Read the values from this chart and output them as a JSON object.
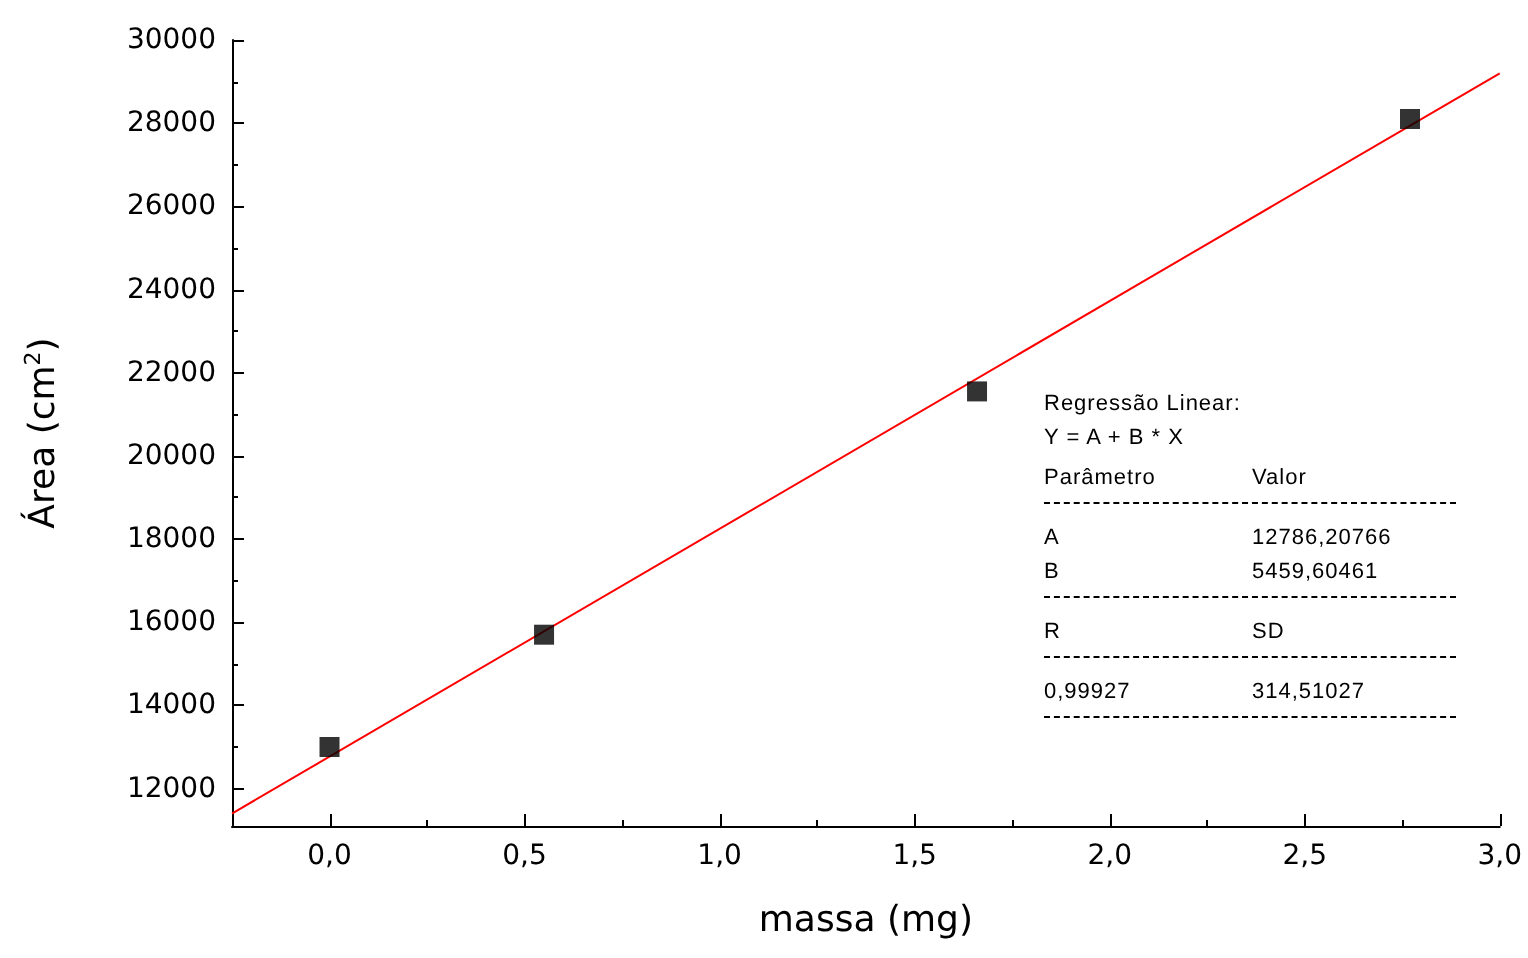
{
  "chart_data": {
    "type": "scatter",
    "xlabel": "massa (mg)",
    "ylabel": "Área (cm$^{2}$)",
    "xlim": [
      -0.25,
      3.0
    ],
    "ylim": [
      11100,
      30000
    ],
    "xticks": [
      {
        "value": 0,
        "label": "0,0"
      },
      {
        "value": 0.5,
        "label": "0,5"
      },
      {
        "value": 1,
        "label": "1,0"
      },
      {
        "value": 1.5,
        "label": "1,5"
      },
      {
        "value": 2,
        "label": "2,0"
      },
      {
        "value": 2.5,
        "label": "2,5"
      },
      {
        "value": 3,
        "label": "3,0"
      }
    ],
    "yticks": [
      12000,
      14000,
      16000,
      18000,
      20000,
      22000,
      24000,
      26000,
      28000,
      30000
    ],
    "grid": false,
    "marker": "square",
    "series": [
      {
        "color": "#000000",
        "x": [
          0,
          0.55,
          1.66,
          2.77
        ],
        "values": [
          13000,
          15700,
          21550,
          28100
        ]
      },
      {
        "type": "line",
        "color": "#ff0000",
        "marker": "none",
        "line_style": "solid",
        "x": [
          -0.25,
          3.0
        ],
        "values": [
          11400,
          29200
        ]
      }
    ],
    "annotations": [
      "Regressão Linear:",
      "Y = A + B * X",
      "Parâmetro",
      "Valor",
      "A",
      "12786,20766",
      "B",
      "5459,60461",
      "R",
      "SD",
      "0,99927",
      "314,51027"
    ]
  }
}
